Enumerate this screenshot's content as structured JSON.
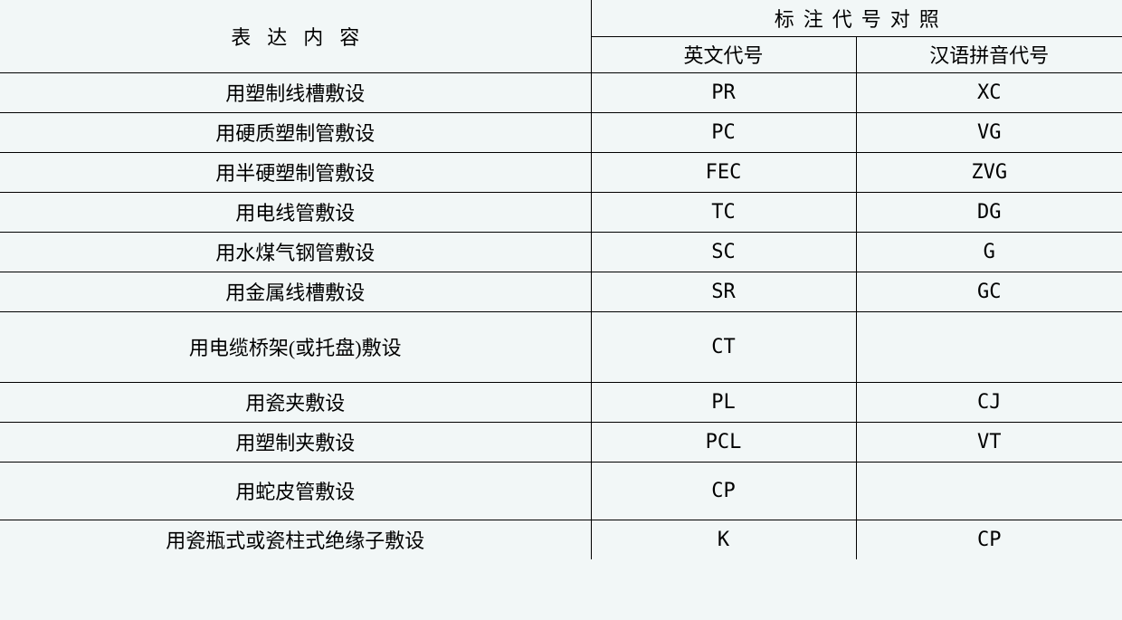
{
  "headers": {
    "content": "表达内容",
    "code_comparison": "标注代号对照",
    "english_code": "英文代号",
    "pinyin_code": "汉语拼音代号"
  },
  "rows": [
    {
      "content": "用塑制线槽敷设",
      "english": "PR",
      "pinyin": "XC"
    },
    {
      "content": "用硬质塑制管敷设",
      "english": "PC",
      "pinyin": "VG"
    },
    {
      "content": "用半硬塑制管敷设",
      "english": "FEC",
      "pinyin": "ZVG"
    },
    {
      "content": "用电线管敷设",
      "english": "TC",
      "pinyin": "DG"
    },
    {
      "content": "用水煤气钢管敷设",
      "english": "SC",
      "pinyin": "G"
    },
    {
      "content": "用金属线槽敷设",
      "english": "SR",
      "pinyin": "GC"
    },
    {
      "content": "用电缆桥架(或托盘)敷设",
      "english": "CT",
      "pinyin": ""
    },
    {
      "content": "用瓷夹敷设",
      "english": "PL",
      "pinyin": "CJ"
    },
    {
      "content": "用塑制夹敷设",
      "english": "PCL",
      "pinyin": "VT"
    },
    {
      "content": "用蛇皮管敷设",
      "english": "CP",
      "pinyin": ""
    },
    {
      "content": "用瓷瓶式或瓷柱式绝缘子敷设",
      "english": "K",
      "pinyin": "CP"
    }
  ]
}
